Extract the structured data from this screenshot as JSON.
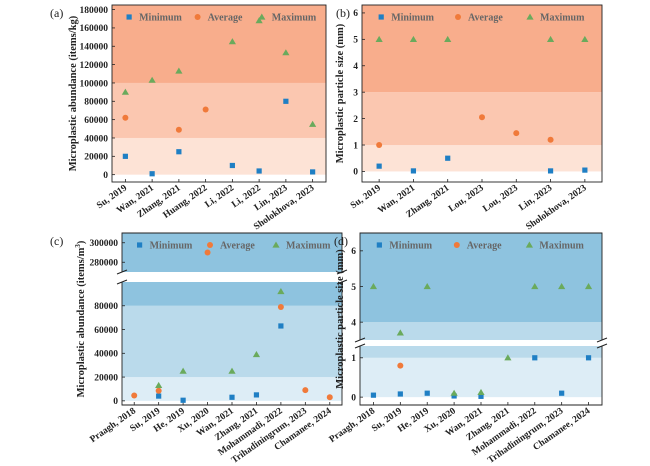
{
  "legend": {
    "minimum": "Minimum",
    "average": "Average",
    "maximum": "Maximum"
  },
  "colors": {
    "minimum": "#1f7fc4",
    "average": "#f07a3a",
    "maximum": "#6aaa5c",
    "orange_bands": [
      "#fde3d6",
      "#fbc7b0",
      "#f8ad8c"
    ],
    "blue_bands": [
      "#ddedf6",
      "#badaeb",
      "#8ec3df"
    ]
  },
  "chart_data": [
    {
      "panel": "(a)",
      "type": "scatter",
      "ylabel": "Microplastic abundance (items/kg)",
      "categories": [
        "Su, 2019",
        "Wan, 2021",
        "Zhang, 2021",
        "Huang, 2022",
        "Li, 2022",
        "Li, 2022",
        "Lin, 2023",
        "Sholokhova, 2023"
      ],
      "ylim": [
        -8000,
        185000
      ],
      "yticks": [
        0,
        20000,
        40000,
        60000,
        80000,
        100000,
        120000,
        140000,
        160000,
        180000
      ],
      "bands": [
        [
          0,
          40000
        ],
        [
          40000,
          100000
        ],
        [
          100000,
          185000
        ]
      ],
      "series": [
        {
          "name": "Minimum",
          "values": [
            20000,
            1000,
            25000,
            null,
            10000,
            4000,
            80000,
            3000
          ]
        },
        {
          "name": "Average",
          "values": [
            62000,
            null,
            49000,
            71000,
            null,
            null,
            null,
            null
          ]
        },
        {
          "name": "Maximum",
          "values": [
            90000,
            103000,
            113000,
            null,
            145000,
            168000,
            133000,
            55000
          ]
        }
      ]
    },
    {
      "panel": "(b)",
      "type": "scatter",
      "ylabel": "Microplastic particle size (mm)",
      "categories": [
        "Su, 2019",
        "Wan, 2021",
        "Zhang, 2021",
        "Lou, 2023",
        "Lou, 2023",
        "Lin, 2023",
        "Sholokhova, 2023"
      ],
      "ylim": [
        -0.4,
        6.3
      ],
      "yticks": [
        0,
        1,
        2,
        3,
        4,
        5,
        6
      ],
      "bands": [
        [
          0,
          1
        ],
        [
          1,
          3
        ],
        [
          3,
          6.3
        ]
      ],
      "series": [
        {
          "name": "Minimum",
          "values": [
            0.2,
            0.02,
            0.5,
            null,
            null,
            0.02,
            0.05
          ]
        },
        {
          "name": "Average",
          "values": [
            1.0,
            null,
            null,
            2.05,
            1.45,
            1.2,
            null
          ]
        },
        {
          "name": "Maximum",
          "values": [
            5,
            5,
            5,
            null,
            null,
            5,
            5
          ]
        }
      ]
    },
    {
      "panel": "(c)",
      "type": "scatter",
      "ylabel": "Microplastic abundance (items/m",
      "ylabel_sup": "3",
      "ylabel_end": ")",
      "categories": [
        "Praagh, 2018",
        "Su, 2019",
        "He, 2019",
        "Xu, 2020",
        "Wan, 2021",
        "Zhang, 2021",
        "Mohammadi, 2022",
        "Trihadiningrum, 2023",
        "Chamanee, 2024"
      ],
      "yticks_lower": [
        0,
        20000,
        40000,
        60000,
        80000
      ],
      "yticks_upper": [
        280000,
        300000
      ],
      "bands": [
        [
          0,
          20000
        ],
        [
          20000,
          80000
        ],
        [
          80000,
          310000
        ]
      ],
      "series": [
        {
          "name": "Minimum",
          "values": [
            null,
            4000,
            500,
            null,
            3000,
            5000,
            63000,
            null,
            null
          ]
        },
        {
          "name": "Average",
          "values": [
            4500,
            8500,
            null,
            290000,
            null,
            null,
            79000,
            9000,
            3000
          ]
        },
        {
          "name": "Maximum",
          "values": [
            null,
            13000,
            25000,
            null,
            25000,
            39000,
            92000,
            null,
            null
          ]
        }
      ]
    },
    {
      "panel": "(d)",
      "type": "scatter",
      "ylabel": "Microplastic particle size (mm)",
      "categories": [
        "Praagh, 2018",
        "Su, 2019",
        "He, 2019",
        "Xu, 2020",
        "Wan, 2021",
        "Zhang, 2021",
        "Mohammadi, 2022",
        "Trihadiningrum, 2023",
        "Chamanee, 2024"
      ],
      "yticks_lower": [
        0,
        1
      ],
      "yticks_upper": [
        4,
        5,
        6
      ],
      "bands": [
        [
          0,
          1
        ],
        [
          1,
          4
        ],
        [
          4,
          6.5
        ]
      ],
      "series": [
        {
          "name": "Minimum",
          "values": [
            0.05,
            0.08,
            0.1,
            0.03,
            0.02,
            null,
            1.0,
            0.1,
            1.0
          ]
        },
        {
          "name": "Average",
          "values": [
            null,
            0.8,
            null,
            null,
            null,
            null,
            null,
            null,
            null
          ]
        },
        {
          "name": "Maximum",
          "values": [
            5,
            3.7,
            5,
            0.1,
            0.12,
            1.0,
            5,
            5,
            5
          ]
        }
      ]
    }
  ]
}
